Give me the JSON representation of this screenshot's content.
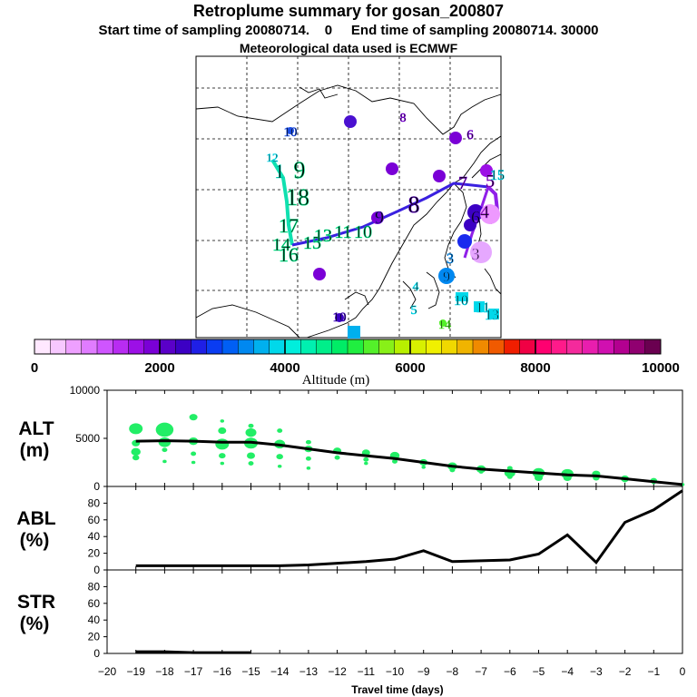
{
  "header": {
    "title": "Retroplume summary for gosan_200807",
    "subtitle": "Start time of sampling 20080714.    0     End time of sampling 20080714. 30000",
    "met": "Meteorological data used is ECMWF"
  },
  "colorbar": {
    "label": "Altitude (m)",
    "ticks": [
      "0",
      "2000",
      "4000",
      "6000",
      "8000",
      "10000"
    ],
    "colors": [
      "#ffe8ff",
      "#f7c8ff",
      "#eea0ff",
      "#e07cff",
      "#cf55ff",
      "#b82cf2",
      "#9c10e6",
      "#7a00d6",
      "#5a00c8",
      "#3c00c4",
      "#1f1fe6",
      "#0a3cf2",
      "#005ff5",
      "#0088f0",
      "#00b0ee",
      "#00d8ea",
      "#00eedc",
      "#00f0b0",
      "#00ee8a",
      "#00ec66",
      "#20ee40",
      "#54f02a",
      "#88f018",
      "#b8f000",
      "#d8f000",
      "#f0f000",
      "#f0d800",
      "#f0b400",
      "#f08a00",
      "#f05a00",
      "#f01e00",
      "#f00044",
      "#ff0070",
      "#ff1a8a",
      "#f42a9c",
      "#e81eae",
      "#d010b0",
      "#b30090",
      "#900070",
      "#6a0050"
    ]
  },
  "map": {
    "labels": [
      {
        "t": "10",
        "c": "#1c4ee6"
      },
      {
        "t": "8",
        "c": "#7a00d6"
      },
      {
        "t": "6",
        "c": "#7a00d6"
      },
      {
        "t": "12",
        "c": "#00d8ea"
      },
      {
        "t": "1",
        "c": "#00e0c0"
      },
      {
        "t": "9",
        "c": "#00ee8a"
      },
      {
        "t": "18",
        "c": "#00ee8a"
      },
      {
        "t": "17",
        "c": "#00ee8a"
      },
      {
        "t": "16",
        "c": "#00ee8a"
      },
      {
        "t": "15",
        "c": "#00ee8a"
      },
      {
        "t": "14",
        "c": "#00ee8a"
      },
      {
        "t": "13",
        "c": "#00ee8a"
      },
      {
        "t": "11",
        "c": "#00ee8a"
      },
      {
        "t": "10",
        "c": "#00ee8a"
      },
      {
        "t": "9",
        "c": "#4a10d0"
      },
      {
        "t": "8",
        "c": "#5a00c8"
      },
      {
        "t": "7",
        "c": "#7a00d6"
      },
      {
        "t": "5",
        "c": "#9c10e6"
      },
      {
        "t": "4",
        "c": "#b82cf2"
      },
      {
        "t": "3",
        "c": "#0088f0"
      },
      {
        "t": "6",
        "c": "#3c00c4"
      },
      {
        "t": "3",
        "c": "#d98aff"
      },
      {
        "t": "9",
        "c": "#0088f0"
      },
      {
        "t": "4",
        "c": "#00d8ea"
      },
      {
        "t": "5",
        "c": "#00d8ea"
      },
      {
        "t": "10",
        "c": "#00d8ea"
      },
      {
        "t": "11",
        "c": "#00d8ea"
      },
      {
        "t": "13",
        "c": "#00d8ea"
      },
      {
        "t": "14",
        "c": "#54f02a"
      },
      {
        "t": "10",
        "c": "#3c00c4"
      },
      {
        "t": "15",
        "c": "#00d8ea"
      }
    ]
  },
  "chart_data": [
    {
      "type": "scatter",
      "name": "ALT",
      "ylabel_line1": "ALT",
      "ylabel_line2": "(m)",
      "ylim": [
        0,
        10000
      ],
      "yticks": [
        "0",
        "5000",
        "10000"
      ],
      "line": {
        "x": [
          -19,
          -18,
          -17,
          -16,
          -15,
          -14,
          -13,
          -12,
          -11,
          -10,
          -9,
          -8,
          -7,
          -6,
          -5,
          -4,
          -3,
          -2,
          -1,
          0
        ],
        "y": [
          4700,
          4750,
          4700,
          4600,
          4600,
          4300,
          3900,
          3500,
          3200,
          2900,
          2500,
          2100,
          1800,
          1600,
          1400,
          1200,
          1100,
          800,
          500,
          200
        ]
      },
      "points": [
        {
          "x": -19,
          "y": 6000,
          "s": 10
        },
        {
          "x": -19,
          "y": 4500,
          "s": 6
        },
        {
          "x": -19,
          "y": 3600,
          "s": 7
        },
        {
          "x": -19,
          "y": 3000,
          "s": 5
        },
        {
          "x": -18,
          "y": 5900,
          "s": 13
        },
        {
          "x": -18,
          "y": 4600,
          "s": 9
        },
        {
          "x": -18,
          "y": 3800,
          "s": 4
        },
        {
          "x": -18,
          "y": 2600,
          "s": 3
        },
        {
          "x": -17,
          "y": 7200,
          "s": 6
        },
        {
          "x": -17,
          "y": 4700,
          "s": 7
        },
        {
          "x": -17,
          "y": 3400,
          "s": 4
        },
        {
          "x": -17,
          "y": 2500,
          "s": 3
        },
        {
          "x": -16,
          "y": 6800,
          "s": 3
        },
        {
          "x": -16,
          "y": 5800,
          "s": 6
        },
        {
          "x": -16,
          "y": 4400,
          "s": 10
        },
        {
          "x": -16,
          "y": 3200,
          "s": 5
        },
        {
          "x": -16,
          "y": 2400,
          "s": 3
        },
        {
          "x": -15,
          "y": 6300,
          "s": 4
        },
        {
          "x": -15,
          "y": 5600,
          "s": 8
        },
        {
          "x": -15,
          "y": 4500,
          "s": 10
        },
        {
          "x": -15,
          "y": 3200,
          "s": 6
        },
        {
          "x": -15,
          "y": 2400,
          "s": 4
        },
        {
          "x": -14,
          "y": 5800,
          "s": 4
        },
        {
          "x": -14,
          "y": 4400,
          "s": 8
        },
        {
          "x": -14,
          "y": 3100,
          "s": 5
        },
        {
          "x": -14,
          "y": 2100,
          "s": 3
        },
        {
          "x": -13,
          "y": 4600,
          "s": 4
        },
        {
          "x": -13,
          "y": 3900,
          "s": 6
        },
        {
          "x": -13,
          "y": 2900,
          "s": 4
        },
        {
          "x": -13,
          "y": 1900,
          "s": 3
        },
        {
          "x": -12,
          "y": 3700,
          "s": 6
        },
        {
          "x": -12,
          "y": 3000,
          "s": 4
        },
        {
          "x": -11,
          "y": 3500,
          "s": 6
        },
        {
          "x": -11,
          "y": 2800,
          "s": 4
        },
        {
          "x": -11,
          "y": 2400,
          "s": 3
        },
        {
          "x": -10,
          "y": 3200,
          "s": 7
        },
        {
          "x": -10,
          "y": 2600,
          "s": 4
        },
        {
          "x": -9,
          "y": 2500,
          "s": 6
        },
        {
          "x": -9,
          "y": 2000,
          "s": 3
        },
        {
          "x": -8,
          "y": 2100,
          "s": 7
        },
        {
          "x": -8,
          "y": 1700,
          "s": 4
        },
        {
          "x": -7,
          "y": 1800,
          "s": 7
        },
        {
          "x": -7,
          "y": 1500,
          "s": 3
        },
        {
          "x": -6,
          "y": 1900,
          "s": 4
        },
        {
          "x": -6,
          "y": 1400,
          "s": 8
        },
        {
          "x": -6,
          "y": 1000,
          "s": 4
        },
        {
          "x": -5,
          "y": 1400,
          "s": 9
        },
        {
          "x": -5,
          "y": 900,
          "s": 6
        },
        {
          "x": -4,
          "y": 1300,
          "s": 9
        },
        {
          "x": -4,
          "y": 900,
          "s": 6
        },
        {
          "x": -3,
          "y": 1300,
          "s": 6
        },
        {
          "x": -3,
          "y": 900,
          "s": 5
        },
        {
          "x": -2,
          "y": 800,
          "s": 6
        },
        {
          "x": -2,
          "y": 600,
          "s": 3
        },
        {
          "x": -1,
          "y": 600,
          "s": 5
        },
        {
          "x": -1,
          "y": 400,
          "s": 3
        },
        {
          "x": 0,
          "y": 200,
          "s": 3
        }
      ]
    },
    {
      "type": "line",
      "name": "ABL",
      "ylabel_line1": "ABL",
      "ylabel_line2": "(%)",
      "ylim": [
        0,
        100
      ],
      "yticks": [
        "0",
        "20",
        "40",
        "60",
        "80"
      ],
      "x": [
        -19,
        -18,
        -17,
        -16,
        -15,
        -14,
        -13,
        -12,
        -11,
        -10,
        -9,
        -8,
        -7,
        -6,
        -5,
        -4,
        -3,
        -2,
        -1,
        0
      ],
      "y": [
        5,
        5,
        5,
        5,
        5,
        5,
        6,
        8,
        10,
        13,
        23,
        10,
        11,
        12,
        19,
        42,
        9,
        57,
        72,
        95
      ]
    },
    {
      "type": "line",
      "name": "STR",
      "ylabel_line1": "STR",
      "ylabel_line2": "(%)",
      "ylim": [
        0,
        100
      ],
      "yticks": [
        "0",
        "20",
        "40",
        "60",
        "80"
      ],
      "x": [
        -19,
        -18,
        -17,
        -16,
        -15
      ],
      "y": [
        2,
        2,
        1,
        1,
        1
      ]
    }
  ],
  "xaxis": {
    "xlabel": "Travel time (days)",
    "ticks": [
      "−20",
      "−19",
      "−18",
      "−17",
      "−16",
      "−15",
      "−14",
      "−13",
      "−12",
      "−11",
      "−10",
      "−9",
      "−8",
      "−7",
      "−6",
      "−5",
      "−4",
      "−3",
      "−2",
      "−1",
      "0"
    ]
  },
  "colors": {
    "points": "#22ee66",
    "line": "#000000",
    "track_blue": "#3a20e0",
    "track_purple": "#9020e8",
    "track_cyan": "#10e0b0"
  }
}
